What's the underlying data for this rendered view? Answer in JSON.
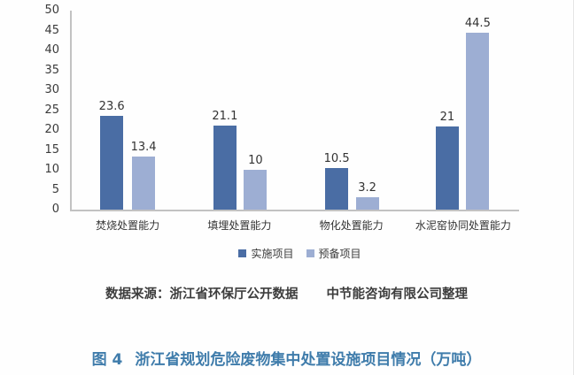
{
  "chart_data": {
    "type": "bar",
    "title": "",
    "categories": [
      "焚烧处置能力",
      "填埋处置能力",
      "物化处置能力",
      "水泥窑协同处置能力"
    ],
    "series": [
      {
        "name": "实施项目",
        "key": "shishi-xiangmu",
        "color": "#4a6da4",
        "values": [
          23.6,
          21.1,
          10.5,
          21
        ]
      },
      {
        "name": "预备项目",
        "key": "yubei-xiangmu",
        "color": "#9daed3",
        "values": [
          13.4,
          10,
          3.2,
          44.5
        ]
      }
    ],
    "xlabel": "",
    "ylabel": "",
    "ylim": [
      0,
      50
    ],
    "ytick_step": 5,
    "grid": false,
    "legend_position": "bottom"
  },
  "colors": {
    "series_implemented": "#4a6da4",
    "series_planned": "#9daed3",
    "axis_line": "#c2c2c2",
    "caption_blue": "#3f7cab",
    "text": "#333333"
  },
  "source_note": {
    "part1": "数据来源：浙江省环保厅公开数据",
    "part2": "中节能咨询有限公司整理"
  },
  "caption": {
    "label": "图 4",
    "text": "浙江省规划危险废物集中处置设施项目情况（万吨）"
  }
}
